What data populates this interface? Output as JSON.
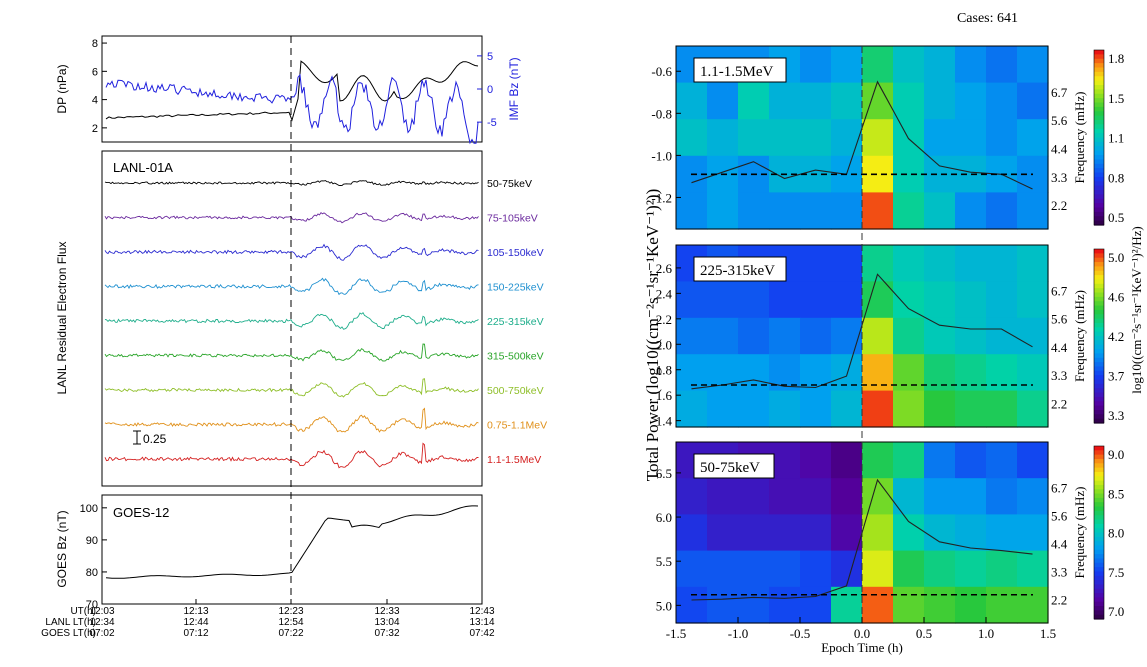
{
  "left_figure": {
    "dp_panel": {
      "ylabel": "DP (nPa)",
      "right_ylabel": "IMF Bz (nT)",
      "yticks": [
        "8",
        "6",
        "4",
        "2"
      ],
      "right_yticks": [
        "5",
        "0",
        "-5"
      ],
      "ylim": [
        1,
        8.5
      ],
      "right_ylim": [
        -8,
        8
      ],
      "dp_color": "#000000",
      "bz_color": "#2020dd"
    },
    "lanl_panel": {
      "title": "LANL-01A",
      "ylabel": "LANL Residual Electron Flux",
      "scale_label": "0.25",
      "channels": [
        {
          "label": "50-75keV",
          "color": "#000000",
          "amplitude": 0.25
        },
        {
          "label": "75-105keV",
          "color": "#6b2a9e",
          "amplitude": 0.55
        },
        {
          "label": "105-150keV",
          "color": "#2a2ad0",
          "amplitude": 0.85
        },
        {
          "label": "150-225keV",
          "color": "#1f90d0",
          "amplitude": 1.0
        },
        {
          "label": "225-315keV",
          "color": "#1fae8c",
          "amplitude": 0.9
        },
        {
          "label": "315-500keV",
          "color": "#2aa52a",
          "amplitude": 0.7
        },
        {
          "label": "500-750keV",
          "color": "#8fbf2a",
          "amplitude": 0.8
        },
        {
          "label": "0.75-1.1MeV",
          "color": "#e0901a",
          "amplitude": 1.0
        },
        {
          "label": "1.1-1.5MeV",
          "color": "#d42020",
          "amplitude": 1.0
        }
      ]
    },
    "goes_panel": {
      "title": "GOES-12",
      "ylabel": "GOES Bz (nT)",
      "yticks": [
        "100",
        "90",
        "80",
        "70"
      ],
      "ylim": [
        70,
        104
      ]
    },
    "time_axis": {
      "row_labels": [
        "UT(h)",
        "LANL LT(h)",
        "GOES LT(h)"
      ],
      "ut": [
        "12:03",
        "12:13",
        "12:23",
        "12:33",
        "12:43"
      ],
      "lanl_lt": [
        "12:34",
        "12:44",
        "12:54",
        "13:04",
        "13:14"
      ],
      "goes_lt": [
        "07:02",
        "07:12",
        "07:22",
        "07:32",
        "07:42"
      ],
      "event_time": "12:23"
    }
  },
  "chart_data": {
    "type": "heatmap",
    "title": "Cases: 641",
    "xlabel": "Epoch Time (h)",
    "ylabel": "Total Power (log10((cm⁻²s⁻¹sr⁻¹KeV⁻¹)²))",
    "right_ylabel": "Frequency (mHz)",
    "colorbar_label": "log10((cm⁻²s⁻¹sr⁻¹KeV⁻¹)²/Hz)",
    "xlim": [
      -1.5,
      1.5
    ],
    "xticks": [
      "-1.5",
      "-1.0",
      "-0.5",
      "0.0",
      "0.5",
      "1.0",
      "1.5"
    ],
    "x_bin_centers": [
      -1.375,
      -1.125,
      -0.875,
      -0.625,
      -0.375,
      -0.125,
      0.125,
      0.375,
      0.625,
      0.875,
      1.125,
      1.375
    ],
    "frequency_ticks": [
      "6.7",
      "5.6",
      "4.4",
      "3.3",
      "2.2"
    ],
    "panels": [
      {
        "label": "1.1-1.5MeV",
        "ylim": [
          -1.35,
          -0.48
        ],
        "yticks": [
          -0.6,
          -0.8,
          -1.0,
          -1.2
        ],
        "ytick_labels": [
          "-0.6",
          "-0.8",
          "-1.0",
          "-1.2"
        ],
        "colorbar_range": [
          0.5,
          1.9
        ],
        "colorbar_ticks": [
          "1.8",
          "1.5",
          "1.1",
          "0.8",
          "0.5"
        ],
        "heatmap_rows_top_to_bottom": [
          [
            1.05,
            1.05,
            1.05,
            1.1,
            1.05,
            1.1,
            1.35,
            1.2,
            1.15,
            1.05,
            1.0,
            1.05
          ],
          [
            1.15,
            1.05,
            1.25,
            1.15,
            1.15,
            1.2,
            1.5,
            1.25,
            1.15,
            1.1,
            1.05,
            1.0
          ],
          [
            1.2,
            1.15,
            1.2,
            1.2,
            1.2,
            1.15,
            1.62,
            1.25,
            1.1,
            1.1,
            1.05,
            1.1
          ],
          [
            1.05,
            1.1,
            1.05,
            1.15,
            1.15,
            1.1,
            1.68,
            1.25,
            1.15,
            1.15,
            1.1,
            1.05
          ],
          [
            1.05,
            1.1,
            1.05,
            1.05,
            1.05,
            1.05,
            1.85,
            1.3,
            1.2,
            1.05,
            1.0,
            1.05
          ]
        ],
        "power_line": [
          -1.13,
          -1.08,
          -1.03,
          -1.11,
          -1.07,
          -1.09,
          -0.65,
          -0.92,
          -1.05,
          -1.08,
          -1.09,
          -1.16
        ],
        "baseline": -1.09
      },
      {
        "label": "225-315keV",
        "ylim": [
          1.35,
          2.78
        ],
        "yticks": [
          2.6,
          2.4,
          2.2,
          2.0,
          1.8,
          1.6,
          1.4
        ],
        "ytick_labels": [
          "2.6",
          "2.4",
          "2.2",
          "2.0",
          "1.8",
          "1.6",
          "1.4"
        ],
        "colorbar_range": [
          3.2,
          5.1
        ],
        "colorbar_ticks": [
          "5.0",
          "4.6",
          "4.2",
          "3.7",
          "3.3"
        ],
        "heatmap_rows_top_to_bottom": [
          [
            3.75,
            3.8,
            3.75,
            3.75,
            3.75,
            3.75,
            4.3,
            4.2,
            4.15,
            4.1,
            4.1,
            4.15
          ],
          [
            3.8,
            3.8,
            3.8,
            3.75,
            3.75,
            3.75,
            4.4,
            4.25,
            4.2,
            4.15,
            4.1,
            4.15
          ],
          [
            3.9,
            3.9,
            3.85,
            3.9,
            3.85,
            3.9,
            4.7,
            4.3,
            4.2,
            4.15,
            4.1,
            4.1
          ],
          [
            4.0,
            4.0,
            4.0,
            3.95,
            4.0,
            4.05,
            4.9,
            4.55,
            4.35,
            4.3,
            4.25,
            4.2
          ],
          [
            4.05,
            4.0,
            4.0,
            4.05,
            4.0,
            4.1,
            5.05,
            4.6,
            4.45,
            4.4,
            4.4,
            4.3
          ]
        ],
        "power_line": [
          1.65,
          1.68,
          1.72,
          1.67,
          1.66,
          1.75,
          2.55,
          2.28,
          2.15,
          2.12,
          2.12,
          1.98
        ],
        "baseline": 1.68
      },
      {
        "label": "50-75keV",
        "ylim": [
          4.8,
          6.85
        ],
        "yticks": [
          6.5,
          6.0,
          5.5,
          5.0
        ],
        "ytick_labels": [
          "6.5",
          "6.0",
          "5.5",
          "5.0"
        ],
        "colorbar_range": [
          6.9,
          9.1
        ],
        "colorbar_ticks": [
          "9.0",
          "8.5",
          "8.0",
          "7.5",
          "7.0"
        ],
        "heatmap_rows_top_to_bottom": [
          [
            7.3,
            7.3,
            7.25,
            7.25,
            7.2,
            7.1,
            8.3,
            8.2,
            7.7,
            7.6,
            7.65,
            7.55
          ],
          [
            7.35,
            7.3,
            7.3,
            7.25,
            7.25,
            7.15,
            8.5,
            7.95,
            7.8,
            7.8,
            7.7,
            7.75
          ],
          [
            7.45,
            7.35,
            7.35,
            7.35,
            7.35,
            7.2,
            8.6,
            8.1,
            7.95,
            7.9,
            7.85,
            7.85
          ],
          [
            7.6,
            7.6,
            7.6,
            7.6,
            7.55,
            7.45,
            8.7,
            8.3,
            8.2,
            8.15,
            8.2,
            8.15
          ],
          [
            7.55,
            7.6,
            7.6,
            7.55,
            7.55,
            8.15,
            9.0,
            8.45,
            8.4,
            8.35,
            8.4,
            8.4
          ]
        ],
        "power_line": [
          5.06,
          5.07,
          5.09,
          5.08,
          5.1,
          5.22,
          6.42,
          5.95,
          5.72,
          5.65,
          5.62,
          5.58
        ],
        "baseline": 5.12
      }
    ]
  }
}
